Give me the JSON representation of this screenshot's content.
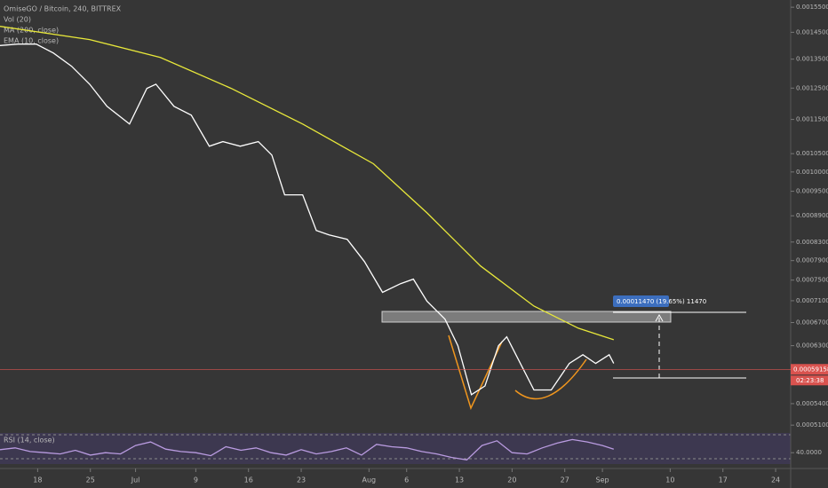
{
  "chart_data": [
    {
      "type": "line",
      "title": "OmiseGO / Bitcoin, 240, BITTREX",
      "vol_label": "Vol (20)",
      "log": true,
      "xlim": [
        -5,
        100
      ],
      "ylim": [
        0.000503,
        0.00158
      ],
      "xticks": [
        {
          "value": 0,
          "label": "18"
        },
        {
          "value": 7,
          "label": "25"
        },
        {
          "value": 13,
          "label": "Jul"
        },
        {
          "value": 21,
          "label": "9"
        },
        {
          "value": 28,
          "label": "16"
        },
        {
          "value": 35,
          "label": "23"
        },
        {
          "value": 44,
          "label": "Aug"
        },
        {
          "value": 49,
          "label": "6"
        },
        {
          "value": 56,
          "label": "13"
        },
        {
          "value": 63,
          "label": "20"
        },
        {
          "value": 70,
          "label": "27"
        },
        {
          "value": 75,
          "label": "Sep"
        },
        {
          "value": 84,
          "label": "10"
        },
        {
          "value": 91,
          "label": "17"
        },
        {
          "value": 98,
          "label": "24"
        }
      ],
      "yticks": [
        {
          "value": 0.00155,
          "label": "0.00155000"
        },
        {
          "value": 0.00145,
          "label": "0.00145000"
        },
        {
          "value": 0.00135,
          "label": "0.00135000"
        },
        {
          "value": 0.00125,
          "label": "0.00125000"
        },
        {
          "value": 0.00115,
          "label": "0.00115000"
        },
        {
          "value": 0.00105,
          "label": "0.00105000"
        },
        {
          "value": 0.001,
          "label": "0.00100000"
        },
        {
          "value": 0.00095,
          "label": "0.00095000"
        },
        {
          "value": 0.00089,
          "label": "0.00089000"
        },
        {
          "value": 0.00083,
          "label": "0.00083000"
        },
        {
          "value": 0.00079,
          "label": "0.00079000"
        },
        {
          "value": 0.00075,
          "label": "0.00075000"
        },
        {
          "value": 0.00071,
          "label": "0.00071000"
        },
        {
          "value": 0.00067,
          "label": "0.00067000"
        },
        {
          "value": 0.00063,
          "label": "0.00063000"
        },
        {
          "value": 0.00054,
          "label": "0.00054000"
        },
        {
          "value": 0.00051,
          "label": "0.00051000"
        }
      ],
      "last_price": 0.00059158,
      "countdown": "02:23:38",
      "measure": "0.00011470 (19.65%) 11470",
      "series": [
        {
          "name": "MA (200, close)",
          "color": "#e8e83a",
          "x": [
            -5.0,
            6.9,
            16.3,
            25.7,
            35.2,
            44.6,
            51.7,
            58.8,
            65.9,
            71.8,
            76.5
          ],
          "values": [
            0.001473,
            0.001422,
            0.001356,
            0.001249,
            0.001136,
            0.001022,
            0.000897,
            0.000779,
            0.0007,
            0.00066,
            0.00064
          ]
        },
        {
          "name": "EMA (10, close)",
          "color": "#ffffff",
          "x": [
            -5.0,
            -2.6,
            -0.2,
            2.1,
            4.5,
            6.9,
            9.2,
            12.2,
            14.5,
            15.7,
            18.1,
            20.4,
            22.8,
            24.6,
            26.9,
            29.3,
            31.1,
            32.8,
            35.2,
            37.0,
            38.7,
            41.1,
            43.4,
            45.8,
            48.2,
            49.9,
            51.7,
            54.1,
            55.8,
            57.6,
            59.4,
            61.2,
            62.3,
            64.1,
            65.9,
            68.2,
            70.6,
            72.4,
            74.1,
            75.9,
            76.5
          ],
          "values": [
            0.0014,
            0.001405,
            0.001405,
            0.001372,
            0.001325,
            0.001263,
            0.001191,
            0.001136,
            0.001249,
            0.001263,
            0.001191,
            0.001163,
            0.001071,
            0.001084,
            0.001071,
            0.001084,
            0.001046,
            0.000941,
            0.000941,
            0.000856,
            0.000846,
            0.000836,
            0.000788,
            0.000726,
            0.000743,
            0.000752,
            0.000709,
            0.000676,
            0.00063,
            0.000553,
            0.000566,
            0.00063,
            0.000645,
            0.000601,
            0.00056,
            0.00056,
            0.000601,
            0.000615,
            0.000601,
            0.000615,
            0.000601
          ]
        }
      ]
    },
    {
      "type": "line",
      "title": "RSI (14, close)",
      "xlim": [
        -5,
        100
      ],
      "ylim": [
        21,
        73
      ],
      "yticks": [
        {
          "value": 40,
          "label": "40.0000"
        }
      ],
      "series": [
        {
          "color": "#b99be0",
          "x": [
            -5,
            -3,
            -1,
            1,
            3,
            5,
            7,
            9,
            11,
            13,
            15,
            17,
            19,
            21,
            23,
            25,
            27,
            29,
            31,
            33,
            35,
            37,
            39,
            41,
            43,
            45,
            47,
            49,
            51,
            53,
            55,
            57,
            59,
            61,
            63,
            65,
            67,
            69,
            71,
            73,
            75,
            76.5
          ],
          "values": [
            45,
            48,
            42,
            40,
            38,
            44,
            36,
            40,
            38,
            52,
            58,
            46,
            42,
            40,
            35,
            50,
            44,
            48,
            40,
            36,
            45,
            38,
            42,
            48,
            36,
            54,
            50,
            48,
            42,
            38,
            32,
            28,
            52,
            60,
            40,
            38,
            48,
            56,
            62,
            58,
            52,
            46
          ]
        }
      ]
    }
  ]
}
